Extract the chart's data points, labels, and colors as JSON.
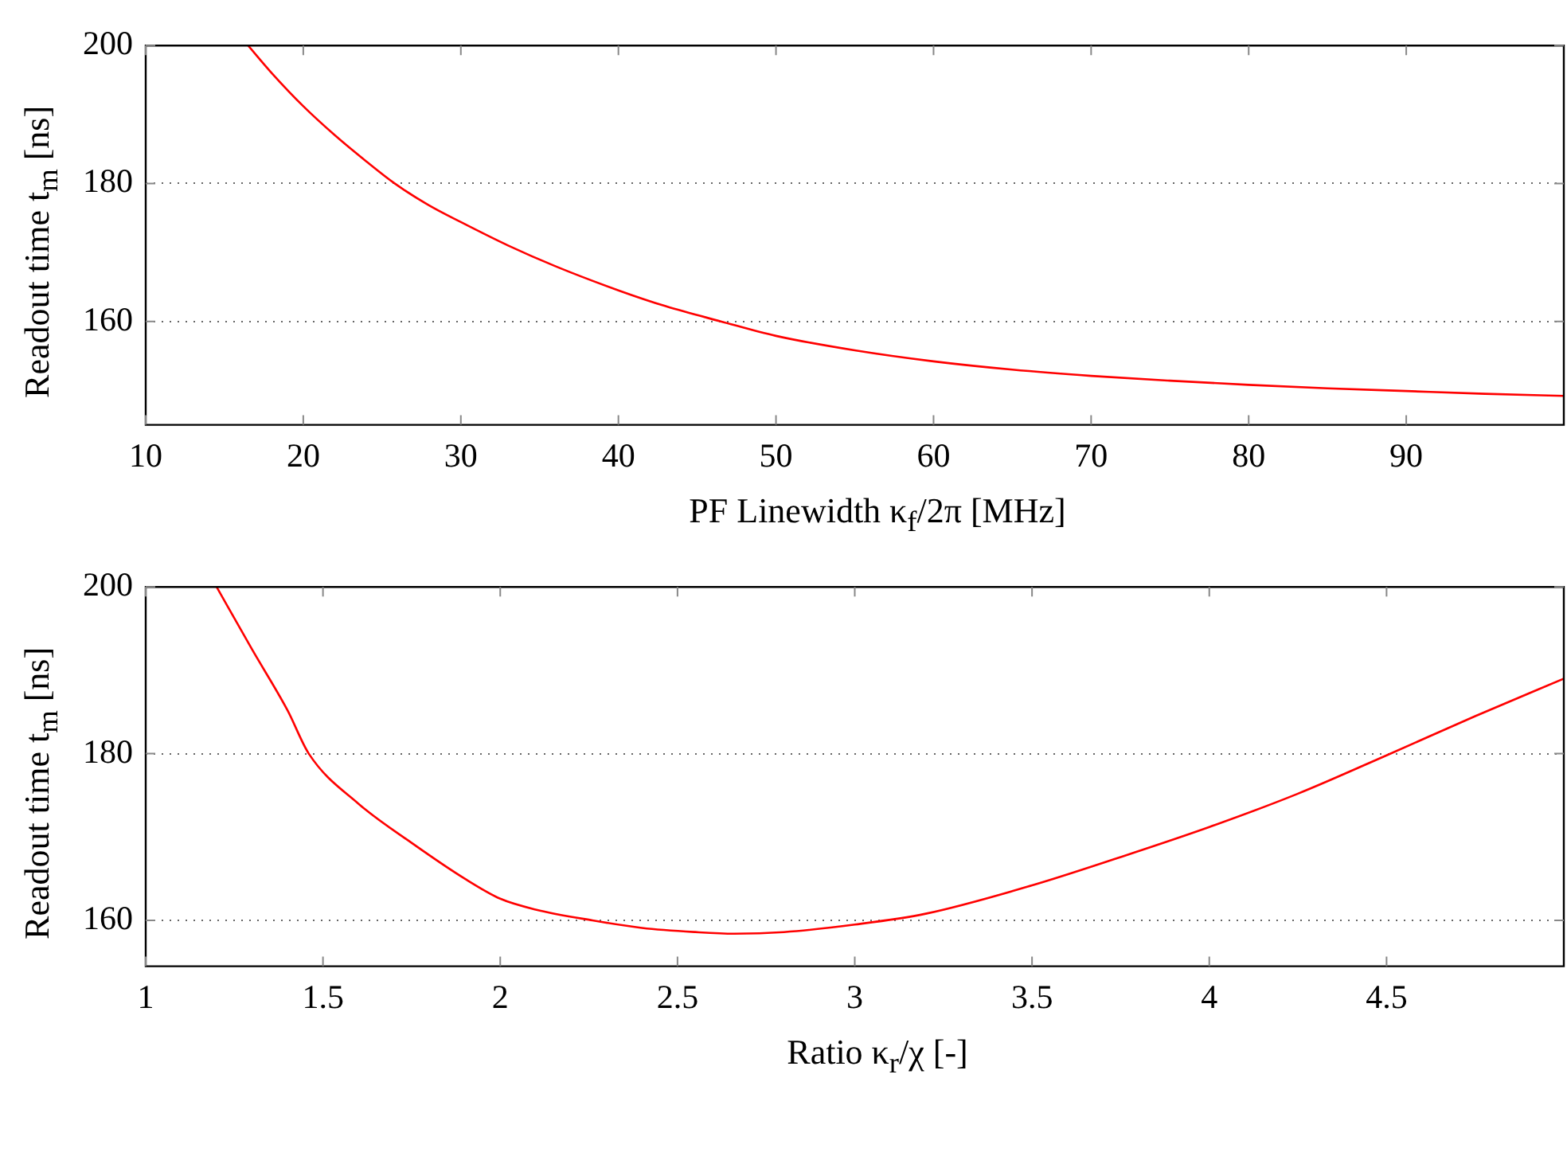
{
  "chart_data": [
    {
      "type": "line",
      "xlabel": "PF Linewidth κ$_{f}$/2π [MHz]",
      "ylabel": "Readout time t$_{m}$ [ns]",
      "xlim": [
        10,
        100
      ],
      "xticks": [
        10,
        20,
        30,
        40,
        50,
        60,
        70,
        80,
        90
      ],
      "ylim": [
        145,
        200
      ],
      "yticks": [
        160,
        180,
        200
      ],
      "grid": "y",
      "marker": "none",
      "line_style": "solid",
      "series": [
        {
          "color": "#ff0000",
          "x": [
            16.5,
            18,
            20,
            22,
            24,
            25.8,
            28,
            30,
            33,
            36,
            40,
            43,
            46.5,
            50,
            55,
            60,
            65,
            70,
            75,
            80,
            85,
            90,
            95,
            100
          ],
          "values": [
            200,
            196,
            191.2,
            187,
            183.2,
            180,
            176.8,
            174.4,
            171,
            168,
            164.5,
            162.2,
            160,
            157.9,
            155.8,
            154.2,
            153,
            152.1,
            151.4,
            150.8,
            150.3,
            149.9,
            149.5,
            149.2
          ]
        }
      ]
    },
    {
      "type": "line",
      "xlabel": "Ratio κ$_{r}$/χ [-]",
      "ylabel": "Readout time t$_{m}$ [ns]",
      "xlim": [
        1,
        5
      ],
      "xticks": [
        1,
        1.5,
        2,
        2.5,
        3,
        3.5,
        4,
        4.5
      ],
      "ylim": [
        154.5,
        200
      ],
      "yticks": [
        160,
        180,
        200
      ],
      "grid": "y",
      "marker": "none",
      "line_style": "solid",
      "series": [
        {
          "color": "#ff0000",
          "x": [
            1.2,
            1.3,
            1.4,
            1.46,
            1.6,
            1.75,
            1.9,
            2,
            2.1,
            2.26,
            2.4,
            2.55,
            2.66,
            2.8,
            3,
            3.2,
            3.5,
            3.75,
            4,
            4.25,
            4.5,
            4.75,
            5
          ],
          "values": [
            200,
            192.5,
            185.2,
            180,
            174,
            169.3,
            165,
            162.6,
            161.3,
            160,
            159.1,
            158.6,
            158.4,
            158.6,
            159.5,
            160.8,
            164.2,
            167.6,
            171.2,
            175.2,
            179.8,
            184.5,
            189
          ]
        }
      ]
    }
  ]
}
